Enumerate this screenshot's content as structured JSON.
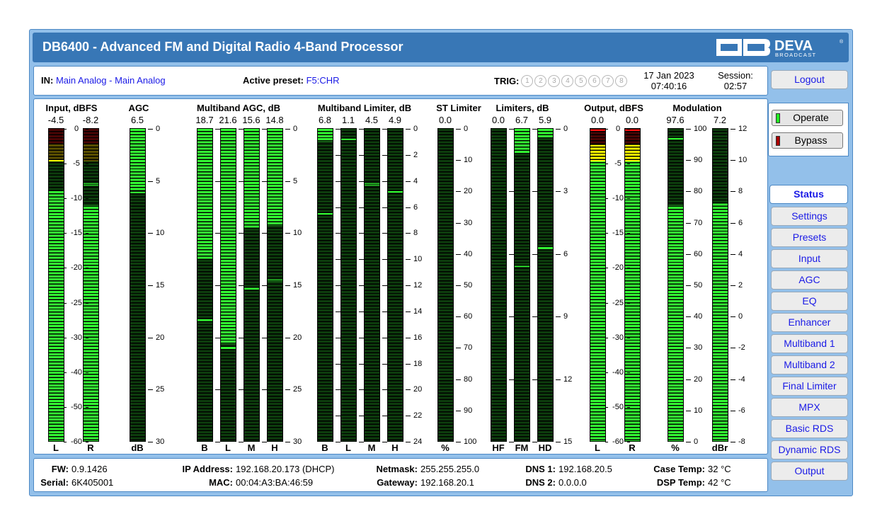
{
  "header": {
    "title": "DB6400 - Advanced FM and Digital Radio 4-Band Processor",
    "logo_text": "DEVA",
    "logo_sub": "BROADCAST"
  },
  "info": {
    "in_label": "IN:",
    "in_value": "Main Analog - Main Analog",
    "preset_label": "Active preset:",
    "preset_value": "F5:CHR",
    "trig_label": "TRIG:",
    "trig": [
      "1",
      "2",
      "3",
      "4",
      "5",
      "6",
      "7",
      "8"
    ],
    "date": "17 Jan 2023",
    "time": "07:40:16",
    "session_label": "Session:",
    "session_value": "02:57"
  },
  "sidebar": {
    "logout": "Logout",
    "operate": "Operate",
    "bypass": "Bypass",
    "active_tab": "Status",
    "items": [
      "Settings",
      "Presets",
      "Input",
      "AGC",
      "EQ",
      "Enhancer",
      "Multiband 1",
      "Multiband 2",
      "Final Limiter",
      "MPX",
      "Basic RDS",
      "Dynamic RDS",
      "Output"
    ]
  },
  "colors": {
    "operate_led": "#22ee22",
    "bypass_led": "#aa0000",
    "lit_green": "#33ff33",
    "dim_green": "#0d3d0d",
    "lit_yellow": "#ffff00",
    "dim_yellow": "#5a4f00",
    "lit_red": "#ff1010",
    "dim_red": "#4a0505"
  },
  "groups": [
    {
      "title": "Input, dBFS",
      "scale": [
        "0",
        "-5",
        "-10",
        "-15",
        "-20",
        "-25",
        "-30",
        "-40",
        "-50",
        "-60"
      ],
      "meters": [
        {
          "label": "L",
          "value": "-4.5",
          "from": "bottom",
          "fill": 0.8,
          "peak": 0.9,
          "zones": "level"
        },
        {
          "label": "R",
          "value": "-8.2",
          "from": "bottom",
          "fill": 0.756,
          "peak": 0.824,
          "zones": "level"
        }
      ]
    },
    {
      "title": "AGC",
      "scale": [
        "0",
        "5",
        "10",
        "15",
        "20",
        "25",
        "30"
      ],
      "meters": [
        {
          "label": "dB",
          "value": "6.5",
          "from": "top",
          "fill": 0.2,
          "peak": 0.205
        }
      ]
    },
    {
      "title": "Multiband AGC, dB",
      "scale": [
        "0",
        "5",
        "10",
        "15",
        "20",
        "25",
        "30"
      ],
      "meters": [
        {
          "label": "B",
          "value": "18.7",
          "from": "top",
          "fill": 0.42,
          "peak": 0.613
        },
        {
          "label": "L",
          "value": "21.6",
          "from": "top",
          "fill": 0.69,
          "peak": 0.7
        },
        {
          "label": "M",
          "value": "15.6",
          "from": "top",
          "fill": 0.32,
          "peak": 0.51
        },
        {
          "label": "H",
          "value": "14.8",
          "from": "top",
          "fill": 0.31,
          "peak": 0.486
        }
      ]
    },
    {
      "title": "Multiband Limiter, dB",
      "scale": [
        "0",
        "2",
        "4",
        "6",
        "8",
        "10",
        "12",
        "14",
        "16",
        "18",
        "20",
        "22",
        "24"
      ],
      "meters": [
        {
          "label": "B",
          "value": "6.8",
          "from": "top",
          "fill": 0.04,
          "peak": 0.27
        },
        {
          "label": "L",
          "value": "1.1",
          "from": "top",
          "fill": 0,
          "peak": 0.034
        },
        {
          "label": "M",
          "value": "4.5",
          "from": "top",
          "fill": 0,
          "peak": 0.176
        },
        {
          "label": "H",
          "value": "4.9",
          "from": "top",
          "fill": 0,
          "peak": 0.2
        }
      ]
    },
    {
      "title": "ST Limiter",
      "scale": [
        "0",
        "10",
        "20",
        "30",
        "40",
        "50",
        "60",
        "70",
        "80",
        "90",
        "100"
      ],
      "meters": [
        {
          "label": "%",
          "value": "0.0",
          "from": "top",
          "fill": 0
        }
      ]
    },
    {
      "title": "Limiters, dB",
      "scale": [
        "0",
        "3",
        "6",
        "9",
        "12",
        "15"
      ],
      "meters": [
        {
          "label": "HF",
          "value": "0.0",
          "from": "top",
          "fill": 0
        },
        {
          "label": "FM",
          "value": "6.7",
          "from": "top",
          "fill": 0.08,
          "peak": 0.437
        },
        {
          "label": "HD",
          "value": "5.9",
          "from": "top",
          "fill": 0.03,
          "peak": 0.38
        }
      ]
    },
    {
      "title": "Output, dBFS",
      "scale": [
        "0",
        "-5",
        "-10",
        "-15",
        "-20",
        "-25",
        "-30",
        "-40",
        "-50",
        "-60"
      ],
      "meters": [
        {
          "label": "L",
          "value": "0.0",
          "from": "bottom",
          "fill": 0.948,
          "peak": 0.995,
          "zones": "level"
        },
        {
          "label": "R",
          "value": "0.0",
          "from": "bottom",
          "fill": 0.948,
          "peak": 0.995,
          "zones": "level"
        }
      ]
    },
    {
      "title": "Modulation",
      "scale": [
        "100",
        "90",
        "80",
        "70",
        "60",
        "50",
        "40",
        "30",
        "20",
        "10",
        "0"
      ],
      "scale2": [
        "12",
        "10",
        "8",
        "6",
        "4",
        "2",
        "0",
        "-2",
        "-4",
        "-6",
        "-8"
      ],
      "meters": [
        {
          "label": "%",
          "value": "97.6",
          "from": "bottom",
          "fill": 0.756,
          "peak": 0.97
        },
        {
          "label": "dBr",
          "value": "7.2",
          "from": "bottom",
          "fill": 0.762
        }
      ]
    }
  ],
  "footer": {
    "fw_label": "FW:",
    "fw": "0.9.1426",
    "serial_label": "Serial:",
    "serial": "6K405001",
    "ip_label": "IP Address:",
    "ip": "192.168.20.173 (DHCP)",
    "mac_label": "MAC:",
    "mac": "00:04:A3:BA:46:59",
    "netmask_label": "Netmask:",
    "netmask": "255.255.255.0",
    "gateway_label": "Gateway:",
    "gateway": "192.168.20.1",
    "dns1_label": "DNS 1:",
    "dns1": "192.168.20.5",
    "dns2_label": "DNS 2:",
    "dns2": "0.0.0.0",
    "case_label": "Case Temp:",
    "case": "32 °C",
    "dsp_label": "DSP Temp:",
    "dsp": "42 °C"
  }
}
